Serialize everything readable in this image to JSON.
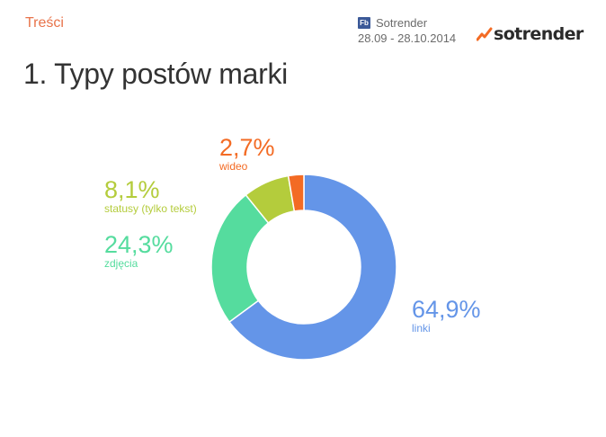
{
  "header": {
    "section": "Treści",
    "source_icon": "Fb",
    "source_name": "Sotrender",
    "date_range": "28.09 - 28.10.2014",
    "logo_text": "sotrender"
  },
  "page_title": "1. Typy postów marki",
  "chart_data": {
    "type": "pie",
    "donut": true,
    "categories": [
      "linki",
      "zdjęcia",
      "statusy (tylko tekst)",
      "wideo"
    ],
    "values": [
      64.9,
      24.3,
      8.1,
      2.7
    ],
    "value_labels": [
      "64,9%",
      "24,3%",
      "8,1%",
      "2,7%"
    ],
    "colors": [
      "#6495e8",
      "#55dc9e",
      "#b4cc3c",
      "#f36b24"
    ],
    "start": "12 o'clock",
    "direction": "clockwise"
  }
}
